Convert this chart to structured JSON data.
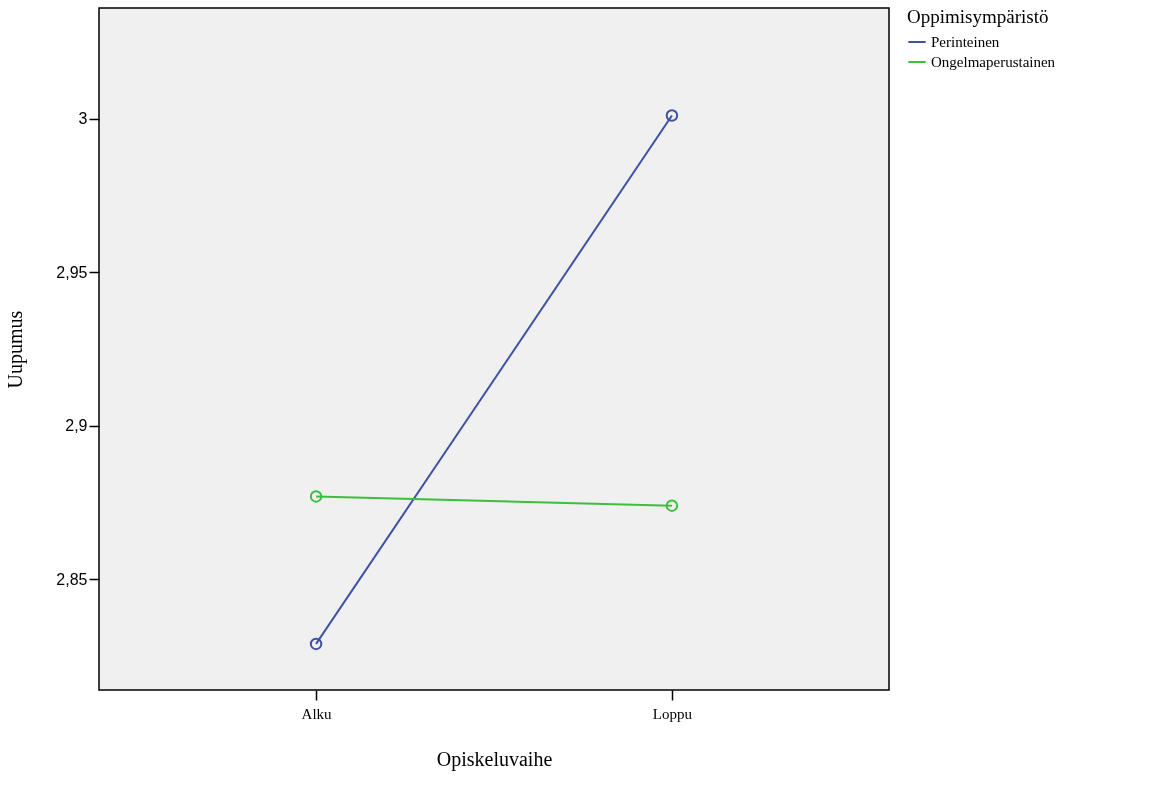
{
  "chart_data": {
    "type": "line",
    "xlabel": "Opiskeluvaihe",
    "ylabel": "Uupumus",
    "legend_title": "Oppimisympäristö",
    "categories": [
      "Alku",
      "Loppu"
    ],
    "series": [
      {
        "name": "Perinteinen",
        "color": "#3f51a3",
        "values": [
          2.829,
          3.001
        ]
      },
      {
        "name": "Ongelmaperustainen",
        "color": "#3cbf3c",
        "values": [
          2.877,
          2.874
        ]
      }
    ],
    "ylim": [
      2.814,
      3.036
    ],
    "yticks": [
      {
        "value": 2.85,
        "label": "2,85"
      },
      {
        "value": 2.9,
        "label": "2,9"
      },
      {
        "value": 2.95,
        "label": "2,95"
      },
      {
        "value": 3,
        "label": "3"
      }
    ],
    "grid": false,
    "legend": "top right",
    "marker": "circle",
    "line_style": "solid"
  }
}
